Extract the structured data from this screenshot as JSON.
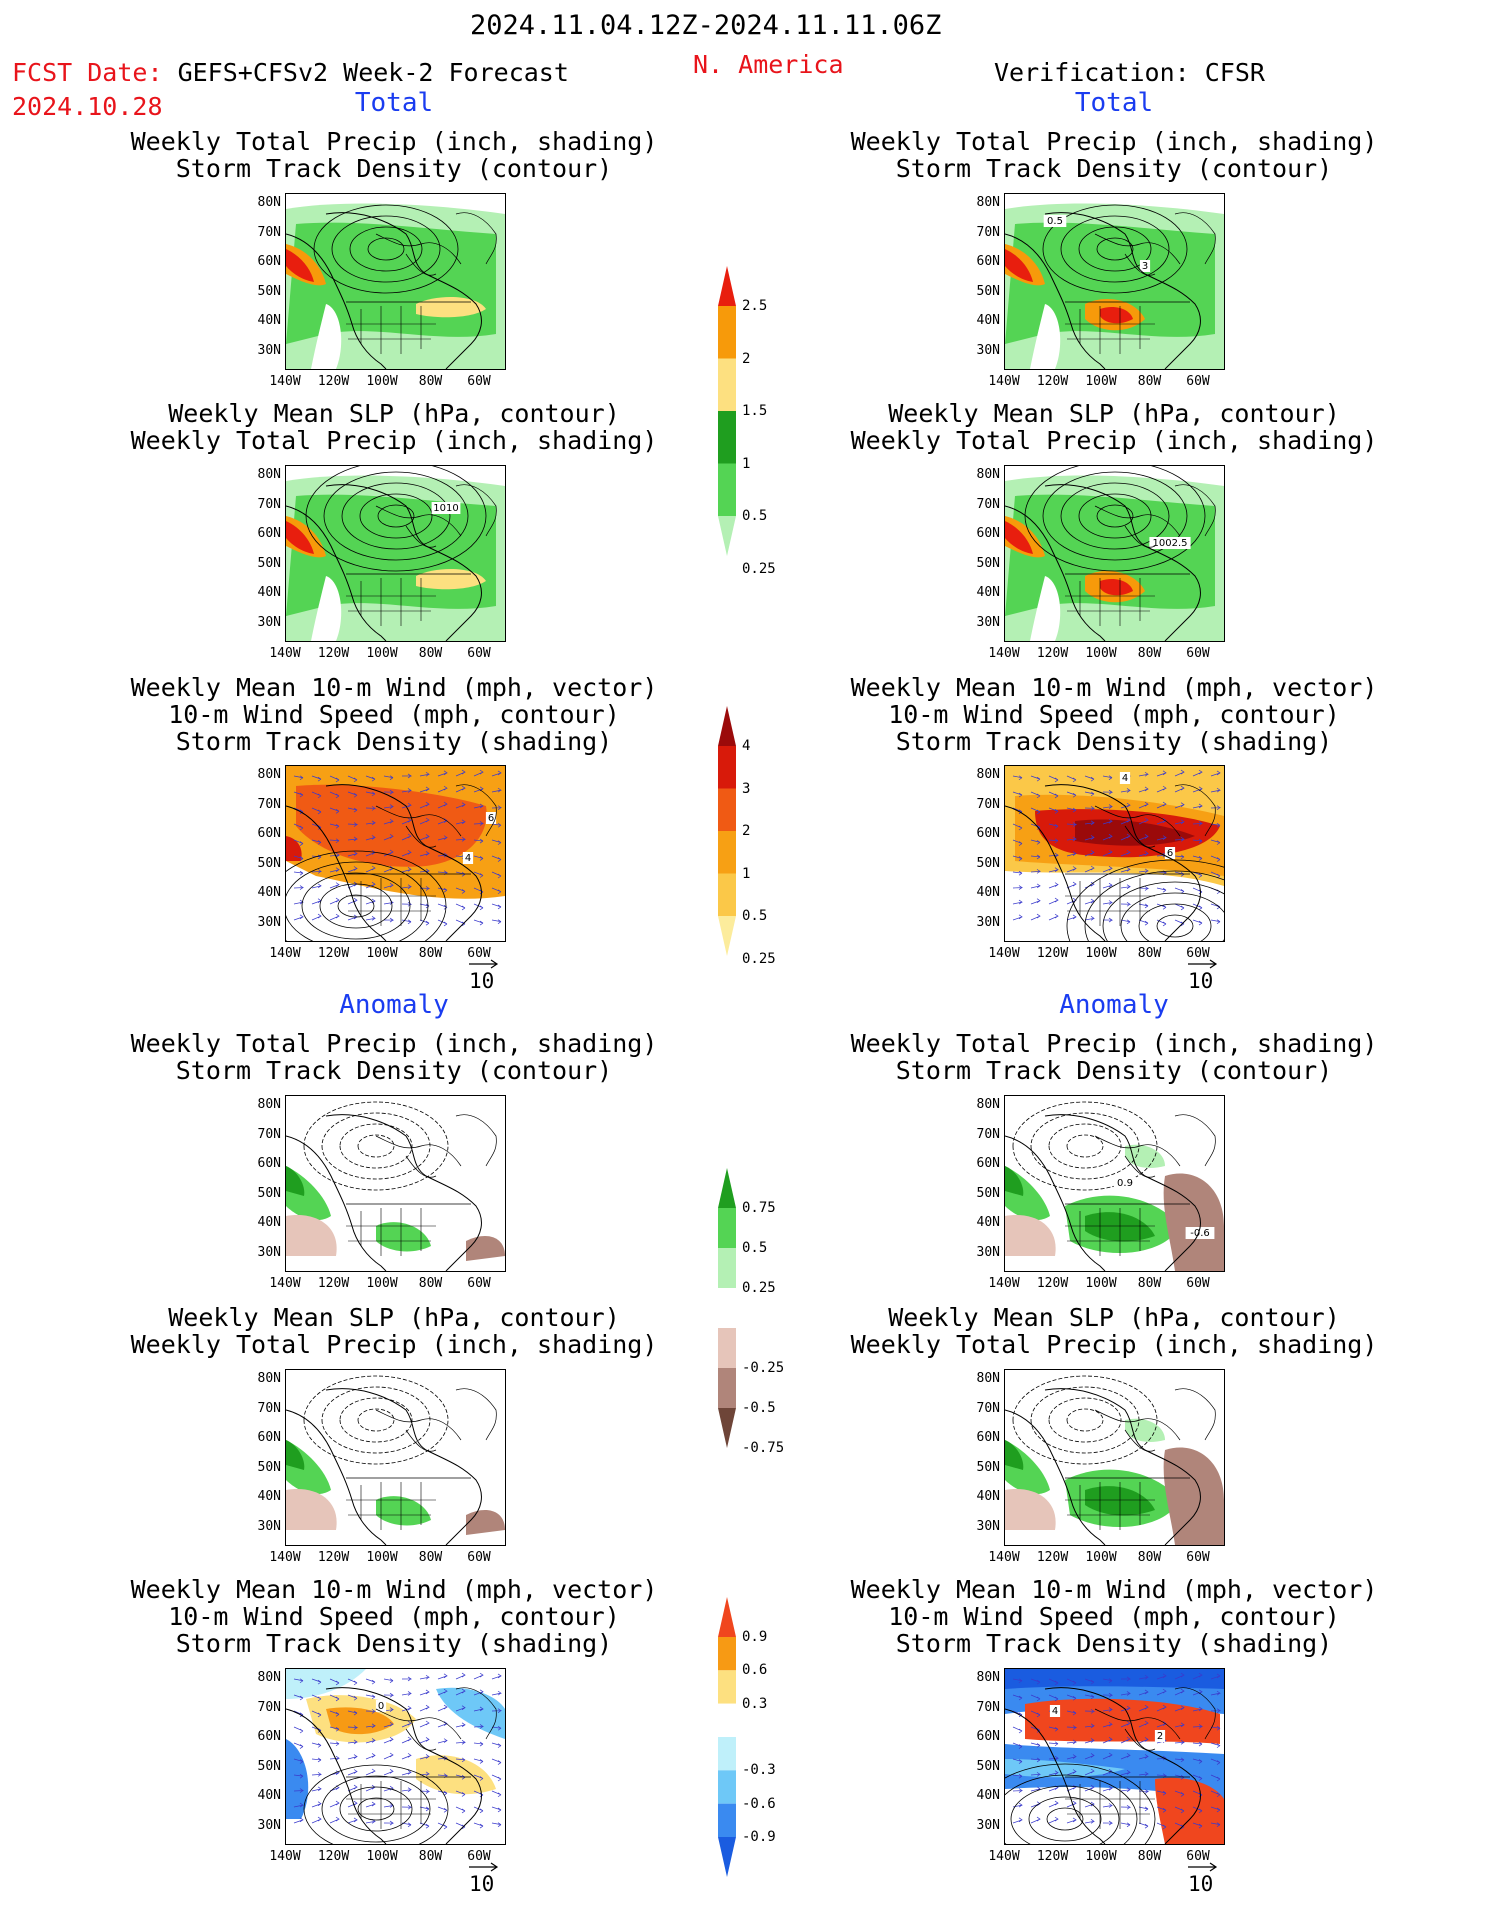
{
  "header": {
    "date_range": "2024.11.04.12Z-2024.11.11.06Z",
    "fcst_label": "FCST Date: ",
    "fcst_model": "GEFS+CFSv2 Week-2 Forecast",
    "fcst_date": "2024.10.28",
    "region": "N. America",
    "verification": "Verification: CFSR"
  },
  "sections": {
    "total": "Total",
    "anomaly": "Anomaly"
  },
  "titles": {
    "precip_storm": [
      "Weekly Total Precip (inch, shading)",
      "Storm Track Density (contour)"
    ],
    "slp_precip": [
      "Weekly Mean SLP (hPa, contour)",
      "Weekly Total Precip (inch, shading)"
    ],
    "wind_storm": [
      "Weekly Mean 10-m Wind (mph, vector)",
      "10-m Wind Speed (mph, contour)",
      "Storm Track Density (shading)"
    ]
  },
  "axes": {
    "lat_labels": [
      "80N",
      "70N",
      "60N",
      "50N",
      "40N",
      "30N"
    ],
    "lon_labels": [
      "140W",
      "120W",
      "100W",
      "80W",
      "60W"
    ]
  },
  "vector_ref": "10",
  "map_labels": {
    "fcst_slp": "1010",
    "cfsr_slp": "1002.5",
    "cfsr_storm_a": "0.5",
    "cfsr_storm_b": "3",
    "fcst_wind_a": "6",
    "fcst_wind_b": "4",
    "cfsr_wind_a": "6",
    "cfsr_wind_b": "4",
    "cfsr_anom_a": "0.9",
    "cfsr_anom_b": "-0.6",
    "fcst_wanom": "0",
    "cfsr_wanom_a": "4",
    "cfsr_wanom_b": "2"
  },
  "colorbars": {
    "precip_total": {
      "labels": [
        "2.5",
        "2",
        "1.5",
        "1",
        "0.5",
        "0.25"
      ],
      "colors": [
        "#e81e0e",
        "#f79a0a",
        "#fde080",
        "#1f9e1f",
        "#54d454",
        "#b4f0b4"
      ]
    },
    "storm_total": {
      "labels": [
        "4",
        "3",
        "2",
        "1",
        "0.5",
        "0.25"
      ],
      "colors": [
        "#9b0a0a",
        "#d81a0a",
        "#f05a14",
        "#f7a014",
        "#fbc848",
        "#fcec9c"
      ]
    },
    "precip_anom": {
      "labels": [
        "0.75",
        "0.5",
        "0.25",
        "-0.25",
        "-0.5",
        "-0.75"
      ],
      "colors": [
        "#1f9e1f",
        "#54d454",
        "#b4f0b4",
        "#ffffff",
        "#e6c5ba",
        "#b0857a",
        "#6e4538"
      ]
    },
    "storm_anom": {
      "labels": [
        "0.9",
        "0.6",
        "0.3",
        "-0.3",
        "-0.6",
        "-0.9"
      ],
      "colors": [
        "#f0461e",
        "#f79a14",
        "#fde080",
        "#ffffff",
        "#bff0fa",
        "#6ec8f7",
        "#3a8af0",
        "#1a5ce0"
      ]
    }
  }
}
